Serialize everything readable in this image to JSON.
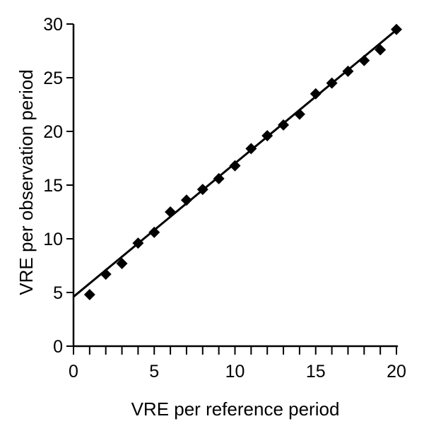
{
  "chart_data": {
    "type": "scatter",
    "xlabel": "VRE per reference period",
    "ylabel": "VRE per observation period",
    "xlim": [
      0,
      20
    ],
    "ylim": [
      0,
      30
    ],
    "x_ticks": [
      0,
      5,
      10,
      15,
      20
    ],
    "y_ticks": [
      0,
      5,
      10,
      15,
      20,
      25,
      30
    ],
    "x_minor_step": 1,
    "grid": false,
    "legend": "none",
    "marker": "diamond",
    "marker_color": "#000000",
    "series": [
      {
        "x": [
          1,
          2,
          3,
          4,
          5,
          6,
          7,
          8,
          9,
          10,
          11,
          12,
          13,
          14,
          15,
          16,
          17,
          18,
          19,
          20
        ],
        "y": [
          4.8,
          6.7,
          7.7,
          9.6,
          10.6,
          12.5,
          13.6,
          14.6,
          15.6,
          16.8,
          18.4,
          19.6,
          20.6,
          21.6,
          23.5,
          24.5,
          25.6,
          26.6,
          27.6,
          29.5
        ]
      }
    ],
    "trendline": {
      "type": "linear",
      "x": [
        0,
        20.2
      ],
      "y": [
        4.6,
        29.7
      ]
    }
  }
}
